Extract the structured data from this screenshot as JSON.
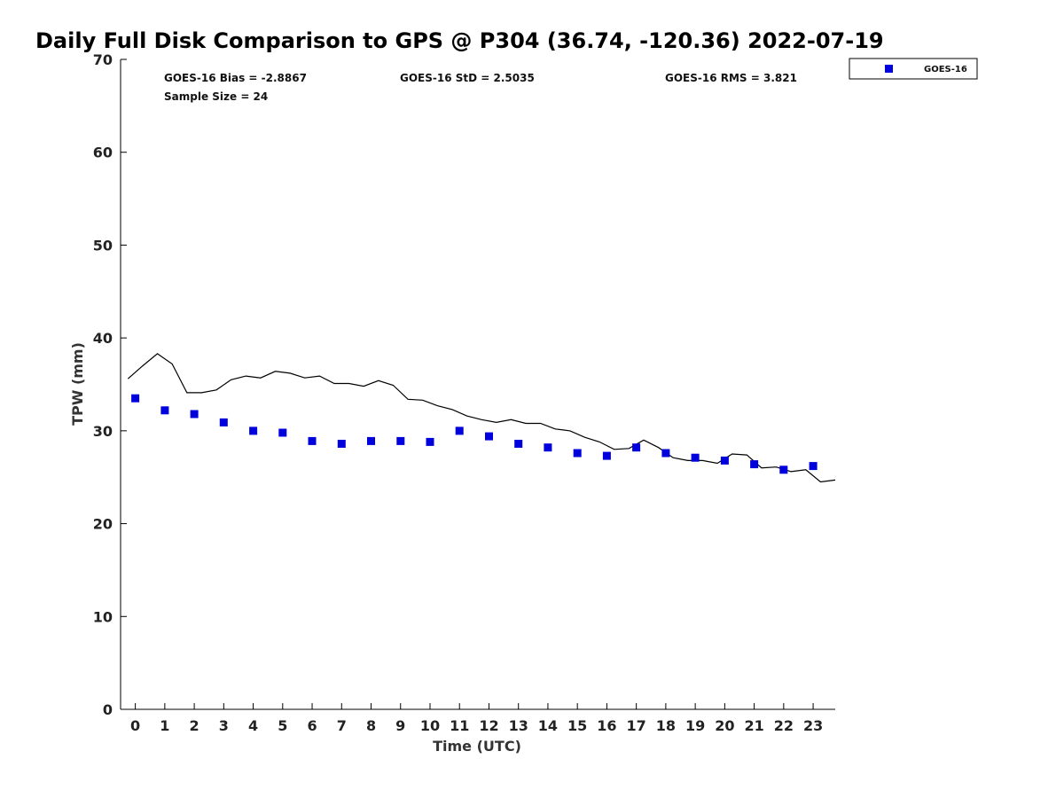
{
  "chart_data": {
    "type": "scatter",
    "title": "Daily Full Disk Comparison to GPS @ P304 (36.74, -120.36) 2022-07-19",
    "xlabel": "Time (UTC)",
    "ylabel": "TPW (mm)",
    "xlim": [
      -0.5,
      23.75
    ],
    "ylim": [
      0,
      70
    ],
    "x_ticks": [
      0,
      1,
      2,
      3,
      4,
      5,
      6,
      7,
      8,
      9,
      10,
      11,
      12,
      13,
      14,
      15,
      16,
      17,
      18,
      19,
      20,
      21,
      22,
      23
    ],
    "x_tick_labels": [
      "0",
      "1",
      "2",
      "3",
      "4",
      "5",
      "6",
      "7",
      "8",
      "9",
      "10",
      "11",
      "12",
      "13",
      "14",
      "15",
      "16",
      "17",
      "18",
      "19",
      "20",
      "21",
      "22",
      "23"
    ],
    "y_ticks": [
      0,
      10,
      20,
      30,
      40,
      50,
      60,
      70
    ],
    "y_tick_labels": [
      "0",
      "10",
      "20",
      "30",
      "40",
      "50",
      "60",
      "70"
    ],
    "grid": false,
    "legend_position": "top-right",
    "stats": {
      "bias": "GOES-16 Bias = -2.8867",
      "std": "GOES-16 StD = 2.5035",
      "rms": "GOES-16 RMS = 3.821",
      "sample": "Sample Size = 24"
    },
    "series": [
      {
        "name": "GOES-16",
        "kind": "scatter",
        "marker": "square",
        "color": "#0000dd",
        "x": [
          0,
          1,
          2,
          3,
          4,
          5,
          6,
          7,
          8,
          9,
          10,
          11,
          12,
          13,
          14,
          15,
          16,
          17,
          18,
          19,
          20,
          21,
          22,
          23
        ],
        "y": [
          33.5,
          32.2,
          31.8,
          30.9,
          30.0,
          29.8,
          28.9,
          28.6,
          28.9,
          28.9,
          28.8,
          30.0,
          29.4,
          28.6,
          28.2,
          27.6,
          27.3,
          28.2,
          27.6,
          27.1,
          26.8,
          26.4,
          25.8,
          26.2
        ]
      },
      {
        "kind": "line",
        "color": "#000000",
        "x": [
          -0.25,
          0.25,
          0.75,
          1.25,
          1.75,
          2.25,
          2.75,
          3.25,
          3.75,
          4.25,
          4.75,
          5.25,
          5.75,
          6.25,
          6.75,
          7.25,
          7.75,
          8.25,
          8.75,
          9.25,
          9.75,
          10.25,
          10.75,
          11.25,
          11.75,
          12.25,
          12.75,
          13.25,
          13.75,
          14.25,
          14.75,
          15.25,
          15.75,
          16.25,
          16.75,
          17.25,
          17.75,
          18.25,
          18.75,
          19.25,
          19.75,
          20.25,
          20.75,
          21.25,
          21.75,
          22.25,
          22.75,
          23.25,
          23.75
        ],
        "y": [
          35.6,
          37.0,
          38.3,
          37.2,
          34.1,
          34.1,
          34.4,
          35.5,
          35.9,
          35.7,
          36.4,
          36.2,
          35.7,
          35.9,
          35.1,
          35.1,
          34.8,
          35.4,
          34.9,
          33.4,
          33.3,
          32.7,
          32.3,
          31.6,
          31.2,
          30.9,
          31.2,
          30.8,
          30.8,
          30.2,
          30.0,
          29.3,
          28.8,
          28.0,
          28.1,
          29.0,
          28.2,
          27.1,
          26.8,
          26.8,
          26.5,
          27.5,
          27.4,
          26.0,
          26.1,
          25.6,
          25.8,
          24.5,
          24.7
        ]
      }
    ]
  }
}
